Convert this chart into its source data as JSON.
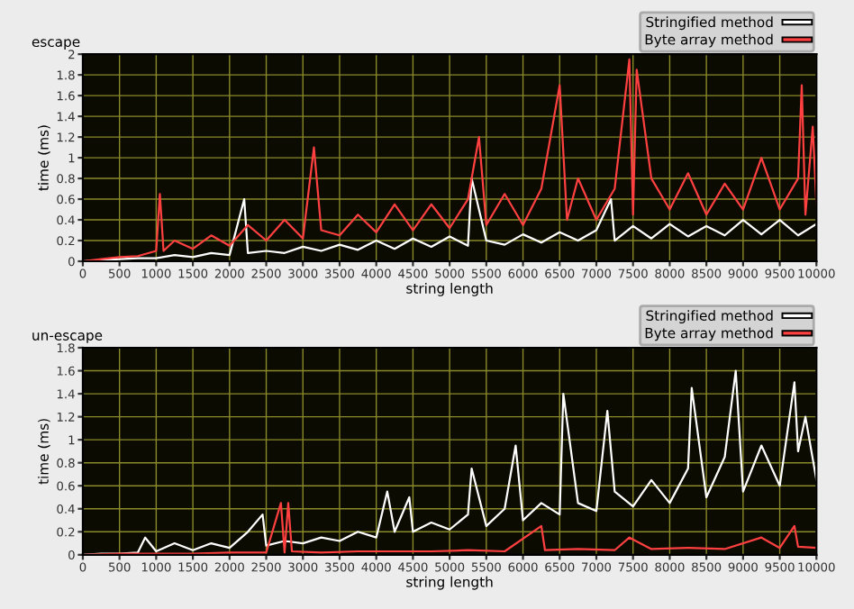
{
  "chart_data": [
    {
      "type": "line",
      "title": "escape",
      "xlabel": "string length",
      "ylabel": "time (ms)",
      "xlim": [
        0,
        10000
      ],
      "ylim": [
        0,
        2
      ],
      "xticks": [
        0,
        500,
        1000,
        1500,
        2000,
        2500,
        3000,
        3500,
        4000,
        4500,
        5000,
        5500,
        6000,
        6500,
        7000,
        7500,
        8000,
        8500,
        9000,
        9500,
        10000
      ],
      "yticks": [
        0,
        0.2,
        0.4,
        0.6,
        0.8,
        1,
        1.2,
        1.4,
        1.6,
        1.8,
        2
      ],
      "grid": true,
      "legend": "top right",
      "series": [
        {
          "name": "Stringified method",
          "color": "#ffffff",
          "x": [
            0,
            250,
            500,
            750,
            1000,
            1250,
            1500,
            1750,
            2000,
            2200,
            2250,
            2500,
            2750,
            3000,
            3250,
            3500,
            3750,
            4000,
            4250,
            4500,
            4750,
            5000,
            5250,
            5300,
            5500,
            5750,
            6000,
            6250,
            6500,
            6750,
            7000,
            7200,
            7250,
            7500,
            7750,
            8000,
            8250,
            8500,
            8750,
            9000,
            9250,
            9500,
            9750,
            10000
          ],
          "values": [
            0,
            0.01,
            0.02,
            0.03,
            0.03,
            0.06,
            0.04,
            0.08,
            0.06,
            0.6,
            0.08,
            0.1,
            0.08,
            0.14,
            0.1,
            0.16,
            0.11,
            0.2,
            0.12,
            0.22,
            0.14,
            0.24,
            0.15,
            0.8,
            0.2,
            0.16,
            0.26,
            0.18,
            0.28,
            0.2,
            0.3,
            0.6,
            0.2,
            0.34,
            0.22,
            0.36,
            0.24,
            0.34,
            0.25,
            0.4,
            0.26,
            0.4,
            0.25,
            0.36
          ]
        },
        {
          "name": "Byte array method",
          "color": "#ff4040",
          "x": [
            0,
            250,
            500,
            750,
            1000,
            1050,
            1100,
            1250,
            1500,
            1750,
            2000,
            2250,
            2500,
            2750,
            3000,
            3150,
            3250,
            3500,
            3750,
            4000,
            4250,
            4500,
            4750,
            5000,
            5250,
            5400,
            5500,
            5750,
            6000,
            6250,
            6500,
            6600,
            6750,
            7000,
            7250,
            7450,
            7500,
            7550,
            7750,
            8000,
            8250,
            8500,
            8750,
            9000,
            9250,
            9500,
            9750,
            9800,
            9850,
            9950,
            10000
          ],
          "values": [
            0,
            0.02,
            0.04,
            0.05,
            0.1,
            0.65,
            0.1,
            0.2,
            0.12,
            0.25,
            0.15,
            0.35,
            0.2,
            0.4,
            0.22,
            1.1,
            0.3,
            0.25,
            0.45,
            0.28,
            0.55,
            0.3,
            0.55,
            0.32,
            0.6,
            1.2,
            0.35,
            0.65,
            0.35,
            0.7,
            1.7,
            0.4,
            0.8,
            0.4,
            0.7,
            1.95,
            0.45,
            1.85,
            0.8,
            0.5,
            0.85,
            0.45,
            0.75,
            0.5,
            1.0,
            0.5,
            0.8,
            1.7,
            0.45,
            1.3,
            0.55
          ]
        }
      ]
    },
    {
      "type": "line",
      "title": "un-escape",
      "xlabel": "string length",
      "ylabel": "time (ms)",
      "xlim": [
        0,
        10000
      ],
      "ylim": [
        0,
        1.8
      ],
      "xticks": [
        0,
        500,
        1000,
        1500,
        2000,
        2500,
        3000,
        3500,
        4000,
        4500,
        5000,
        5500,
        6000,
        6500,
        7000,
        7500,
        8000,
        8500,
        9000,
        9500,
        10000
      ],
      "yticks": [
        0,
        0.2,
        0.4,
        0.6,
        0.8,
        1,
        1.2,
        1.4,
        1.6,
        1.8
      ],
      "grid": true,
      "legend": "top right",
      "series": [
        {
          "name": "Stringified method",
          "color": "#ffffff",
          "x": [
            0,
            250,
            500,
            750,
            850,
            1000,
            1250,
            1500,
            1750,
            2000,
            2250,
            2450,
            2500,
            2750,
            3000,
            3250,
            3500,
            3750,
            4000,
            4150,
            4250,
            4450,
            4500,
            4750,
            5000,
            5250,
            5300,
            5500,
            5750,
            5900,
            6000,
            6250,
            6500,
            6550,
            6750,
            7000,
            7150,
            7250,
            7500,
            7750,
            8000,
            8250,
            8300,
            8500,
            8750,
            8900,
            9000,
            9250,
            9500,
            9700,
            9750,
            9850,
            10000
          ],
          "values": [
            0,
            0.01,
            0.01,
            0.02,
            0.15,
            0.03,
            0.1,
            0.04,
            0.1,
            0.06,
            0.2,
            0.35,
            0.08,
            0.12,
            0.1,
            0.15,
            0.12,
            0.2,
            0.15,
            0.55,
            0.2,
            0.5,
            0.2,
            0.28,
            0.22,
            0.35,
            0.75,
            0.25,
            0.4,
            0.95,
            0.3,
            0.45,
            0.35,
            1.4,
            0.45,
            0.38,
            1.25,
            0.55,
            0.42,
            0.65,
            0.45,
            0.75,
            1.45,
            0.5,
            0.85,
            1.6,
            0.55,
            0.95,
            0.6,
            1.5,
            0.9,
            1.2,
            0.65
          ]
        },
        {
          "name": "Byte array method",
          "color": "#ff4040",
          "x": [
            0,
            500,
            1000,
            1500,
            2000,
            2500,
            2700,
            2750,
            2800,
            2850,
            3250,
            3750,
            4250,
            4750,
            5250,
            5750,
            6250,
            6300,
            6750,
            7250,
            7450,
            7750,
            8250,
            8750,
            9250,
            9500,
            9700,
            9750,
            10000
          ],
          "values": [
            0,
            0.01,
            0.01,
            0.01,
            0.02,
            0.02,
            0.45,
            0.02,
            0.45,
            0.03,
            0.02,
            0.03,
            0.03,
            0.03,
            0.04,
            0.03,
            0.25,
            0.04,
            0.05,
            0.04,
            0.15,
            0.05,
            0.06,
            0.05,
            0.15,
            0.06,
            0.25,
            0.07,
            0.06
          ]
        }
      ]
    }
  ]
}
